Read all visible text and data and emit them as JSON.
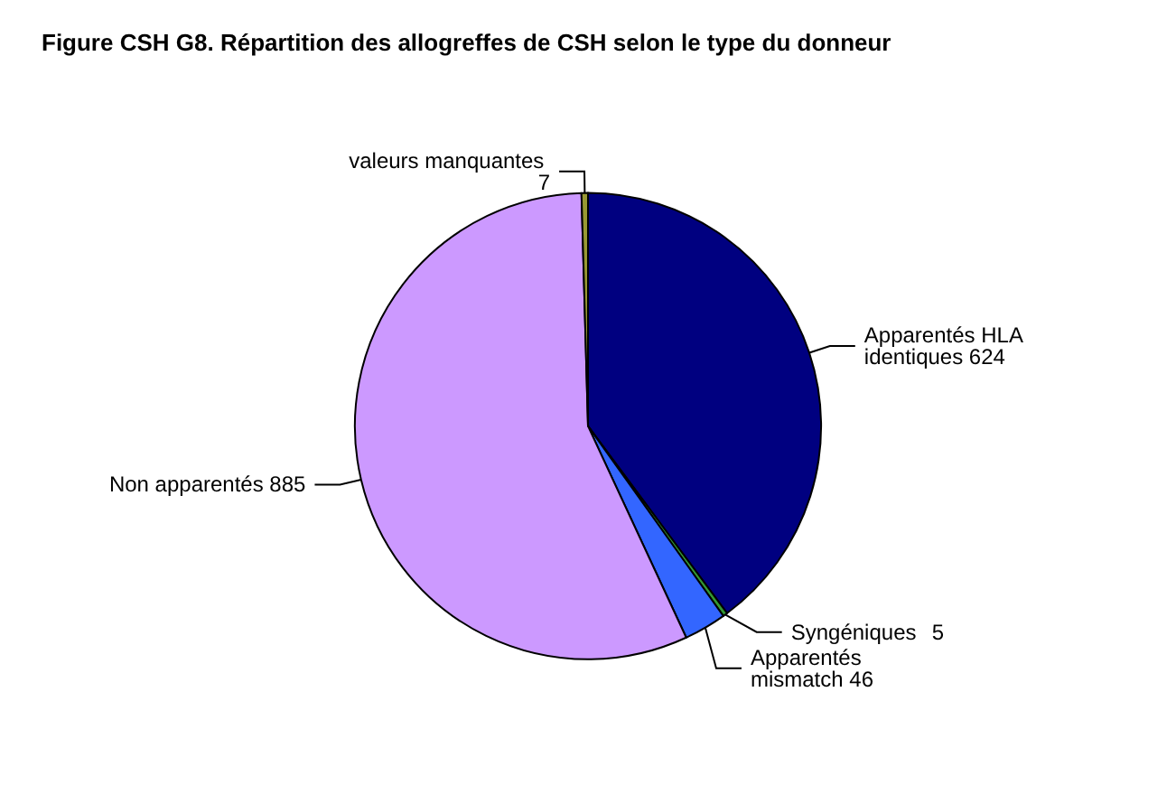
{
  "chart_data": {
    "type": "pie",
    "title": "Figure CSH G8. Répartition des allogreffes de CSH selon le type du donneur",
    "categories": [
      "Apparentés HLA identiques",
      "Syngéniques",
      "Apparentés mismatch",
      "Non apparentés",
      "valeurs manquantes"
    ],
    "values": [
      624,
      5,
      46,
      885,
      7
    ],
    "colors": [
      "#000080",
      "#339933",
      "#3366ff",
      "#cc99ff",
      "#999933"
    ],
    "data_labels": true,
    "legend": false
  }
}
